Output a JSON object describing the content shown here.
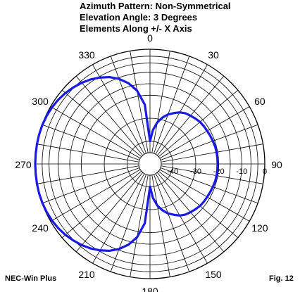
{
  "header": {
    "title_lines": [
      "Azimuth Pattern:  Non-Symmetrical",
      "Elevation Angle: 3 Degrees",
      "Elements Along +/- X Axis"
    ]
  },
  "footer": {
    "software": "NEC-Win Plus",
    "figure": "Fig. 12"
  },
  "chart_data": {
    "type": "polar-line",
    "title": "Azimuth Pattern:  Non-Symmetrical",
    "angle_unit": "degrees",
    "angle_zero": "top",
    "angle_direction": "clockwise",
    "angle_tick_labels": [
      "0",
      "30",
      "60",
      "90",
      "120",
      "150",
      "180",
      "210",
      "240",
      "270",
      "300",
      "330"
    ],
    "angle_tick_values": [
      0,
      30,
      60,
      90,
      120,
      150,
      180,
      210,
      240,
      270,
      300,
      330
    ],
    "radial_unit": "dB",
    "radial_tick_labels": [
      "-40",
      "-30",
      "-20",
      "-10",
      "0"
    ],
    "radial_tick_values": [
      -40,
      -30,
      -20,
      -10,
      0
    ],
    "radial_range": [
      -45,
      0
    ],
    "grid": true,
    "colors": {
      "pattern": "#1a1ae6",
      "grid": "#000000"
    },
    "series": [
      {
        "angles": [
          0,
          5,
          10,
          15,
          20,
          25,
          30,
          35,
          40,
          45,
          50,
          55,
          60,
          65,
          70,
          75,
          80,
          85,
          90,
          95,
          100,
          105,
          110,
          115,
          120,
          125,
          130,
          135,
          140,
          145,
          150,
          155,
          160,
          165,
          170,
          175,
          180,
          185,
          190,
          195,
          200,
          205,
          210,
          215,
          220,
          225,
          230,
          235,
          240,
          245,
          250,
          255,
          260,
          265,
          270,
          275,
          280,
          285,
          290,
          295,
          300,
          305,
          310,
          315,
          320,
          325,
          330,
          335,
          340,
          345,
          350,
          355
        ],
        "values": [
          -40,
          -35,
          -31.5,
          -29,
          -27,
          -25.5,
          -24,
          -23,
          -22.5,
          -22,
          -21.5,
          -21.3,
          -21.2,
          -21,
          -20.8,
          -20.6,
          -20.5,
          -20.5,
          -20.5,
          -20.5,
          -20.5,
          -20.6,
          -20.8,
          -21,
          -21.2,
          -21.3,
          -21.5,
          -22,
          -22.5,
          -23,
          -24,
          -25.5,
          -27,
          -29,
          -31.5,
          -35,
          -40,
          -24,
          -17.5,
          -13.5,
          -10.5,
          -8.2,
          -6.5,
          -5,
          -3.8,
          -2.8,
          -1.9,
          -1.2,
          -0.7,
          -0.35,
          -0.12,
          -0.02,
          0,
          -0.02,
          0,
          -0.02,
          0,
          -0.02,
          -0.12,
          -0.35,
          -0.7,
          -1.2,
          -1.9,
          -2.8,
          -3.8,
          -5,
          -6.5,
          -8.2,
          -10.5,
          -13.5,
          -17.5,
          -24
        ]
      }
    ]
  }
}
